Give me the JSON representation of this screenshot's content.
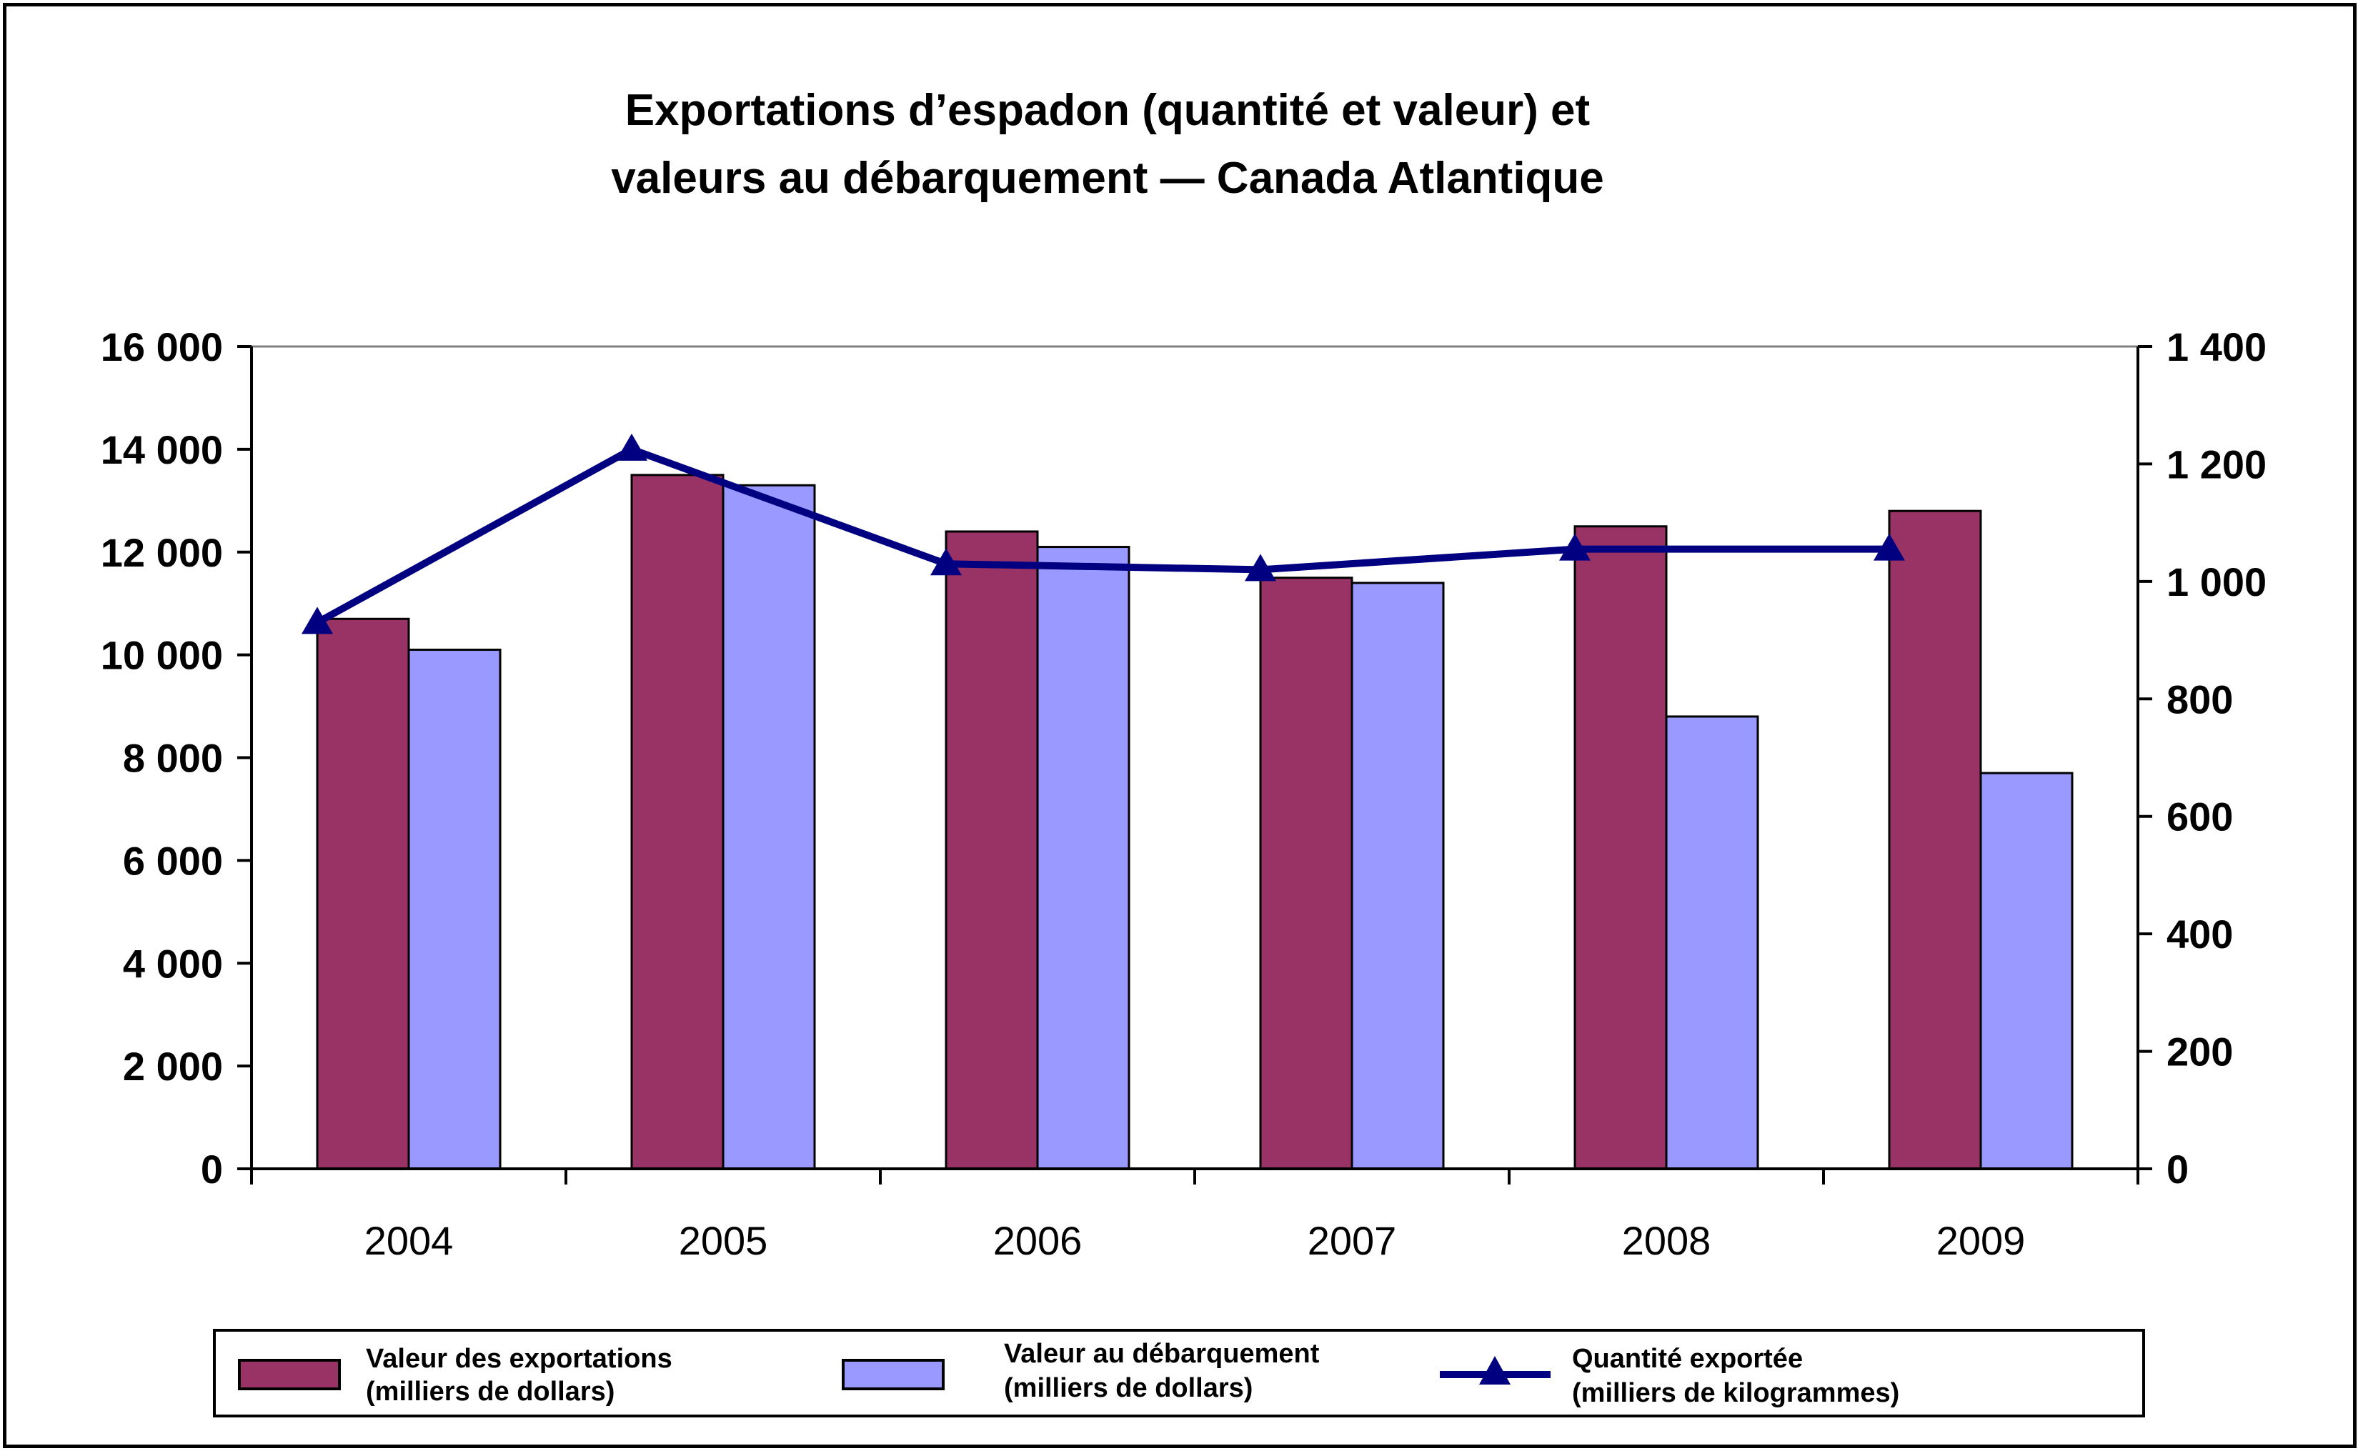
{
  "chart_data": {
    "type": "bar",
    "title_lines": [
      "Exportations d’espadon (quantité et valeur) et",
      "valeurs au débarquement — Canada Atlantique"
    ],
    "categories": [
      "2004",
      "2005",
      "2006",
      "2007",
      "2008",
      "2009"
    ],
    "y_left": {
      "range": [
        0,
        16000
      ],
      "ticks": [
        0,
        2000,
        4000,
        6000,
        8000,
        10000,
        12000,
        14000,
        16000
      ],
      "tick_labels": [
        "0",
        "2 000",
        "4 000",
        "6 000",
        "8 000",
        "10 000",
        "12 000",
        "14 000",
        "16 000"
      ]
    },
    "y_right": {
      "range": [
        0,
        1400
      ],
      "ticks": [
        0,
        200,
        400,
        600,
        800,
        1000,
        1200,
        1400
      ],
      "tick_labels": [
        "0",
        "200",
        "400",
        "600",
        "800",
        "1 000",
        "1 200",
        "1 400"
      ]
    },
    "grid": false,
    "legend_position": "bottom",
    "series": [
      {
        "name": "Valeur des exportations (milliers de dollars)",
        "legend_lines": [
          "Valeur des exportations",
          "(milliers de dollars)"
        ],
        "kind": "bar",
        "axis": "left",
        "color": "#993366",
        "values": [
          10700,
          13500,
          12400,
          11500,
          12500,
          12800
        ]
      },
      {
        "name": "Valeur au débarquement (milliers de dollars)",
        "legend_lines": [
          "Valeur au débarquement",
          "(milliers de dollars)"
        ],
        "kind": "bar",
        "axis": "left",
        "color": "#9999ff",
        "values": [
          10100,
          13300,
          12100,
          11400,
          8800,
          7700
        ]
      },
      {
        "name": "Quantité exportée (milliers de kilogrammes)",
        "legend_lines": [
          "Quantité exportée",
          "(milliers de kilogrammes)"
        ],
        "kind": "line",
        "axis": "right",
        "color": "#000080",
        "marker": "triangle",
        "values": [
          930,
          1225,
          1030,
          1020,
          1055,
          1055
        ]
      }
    ]
  }
}
